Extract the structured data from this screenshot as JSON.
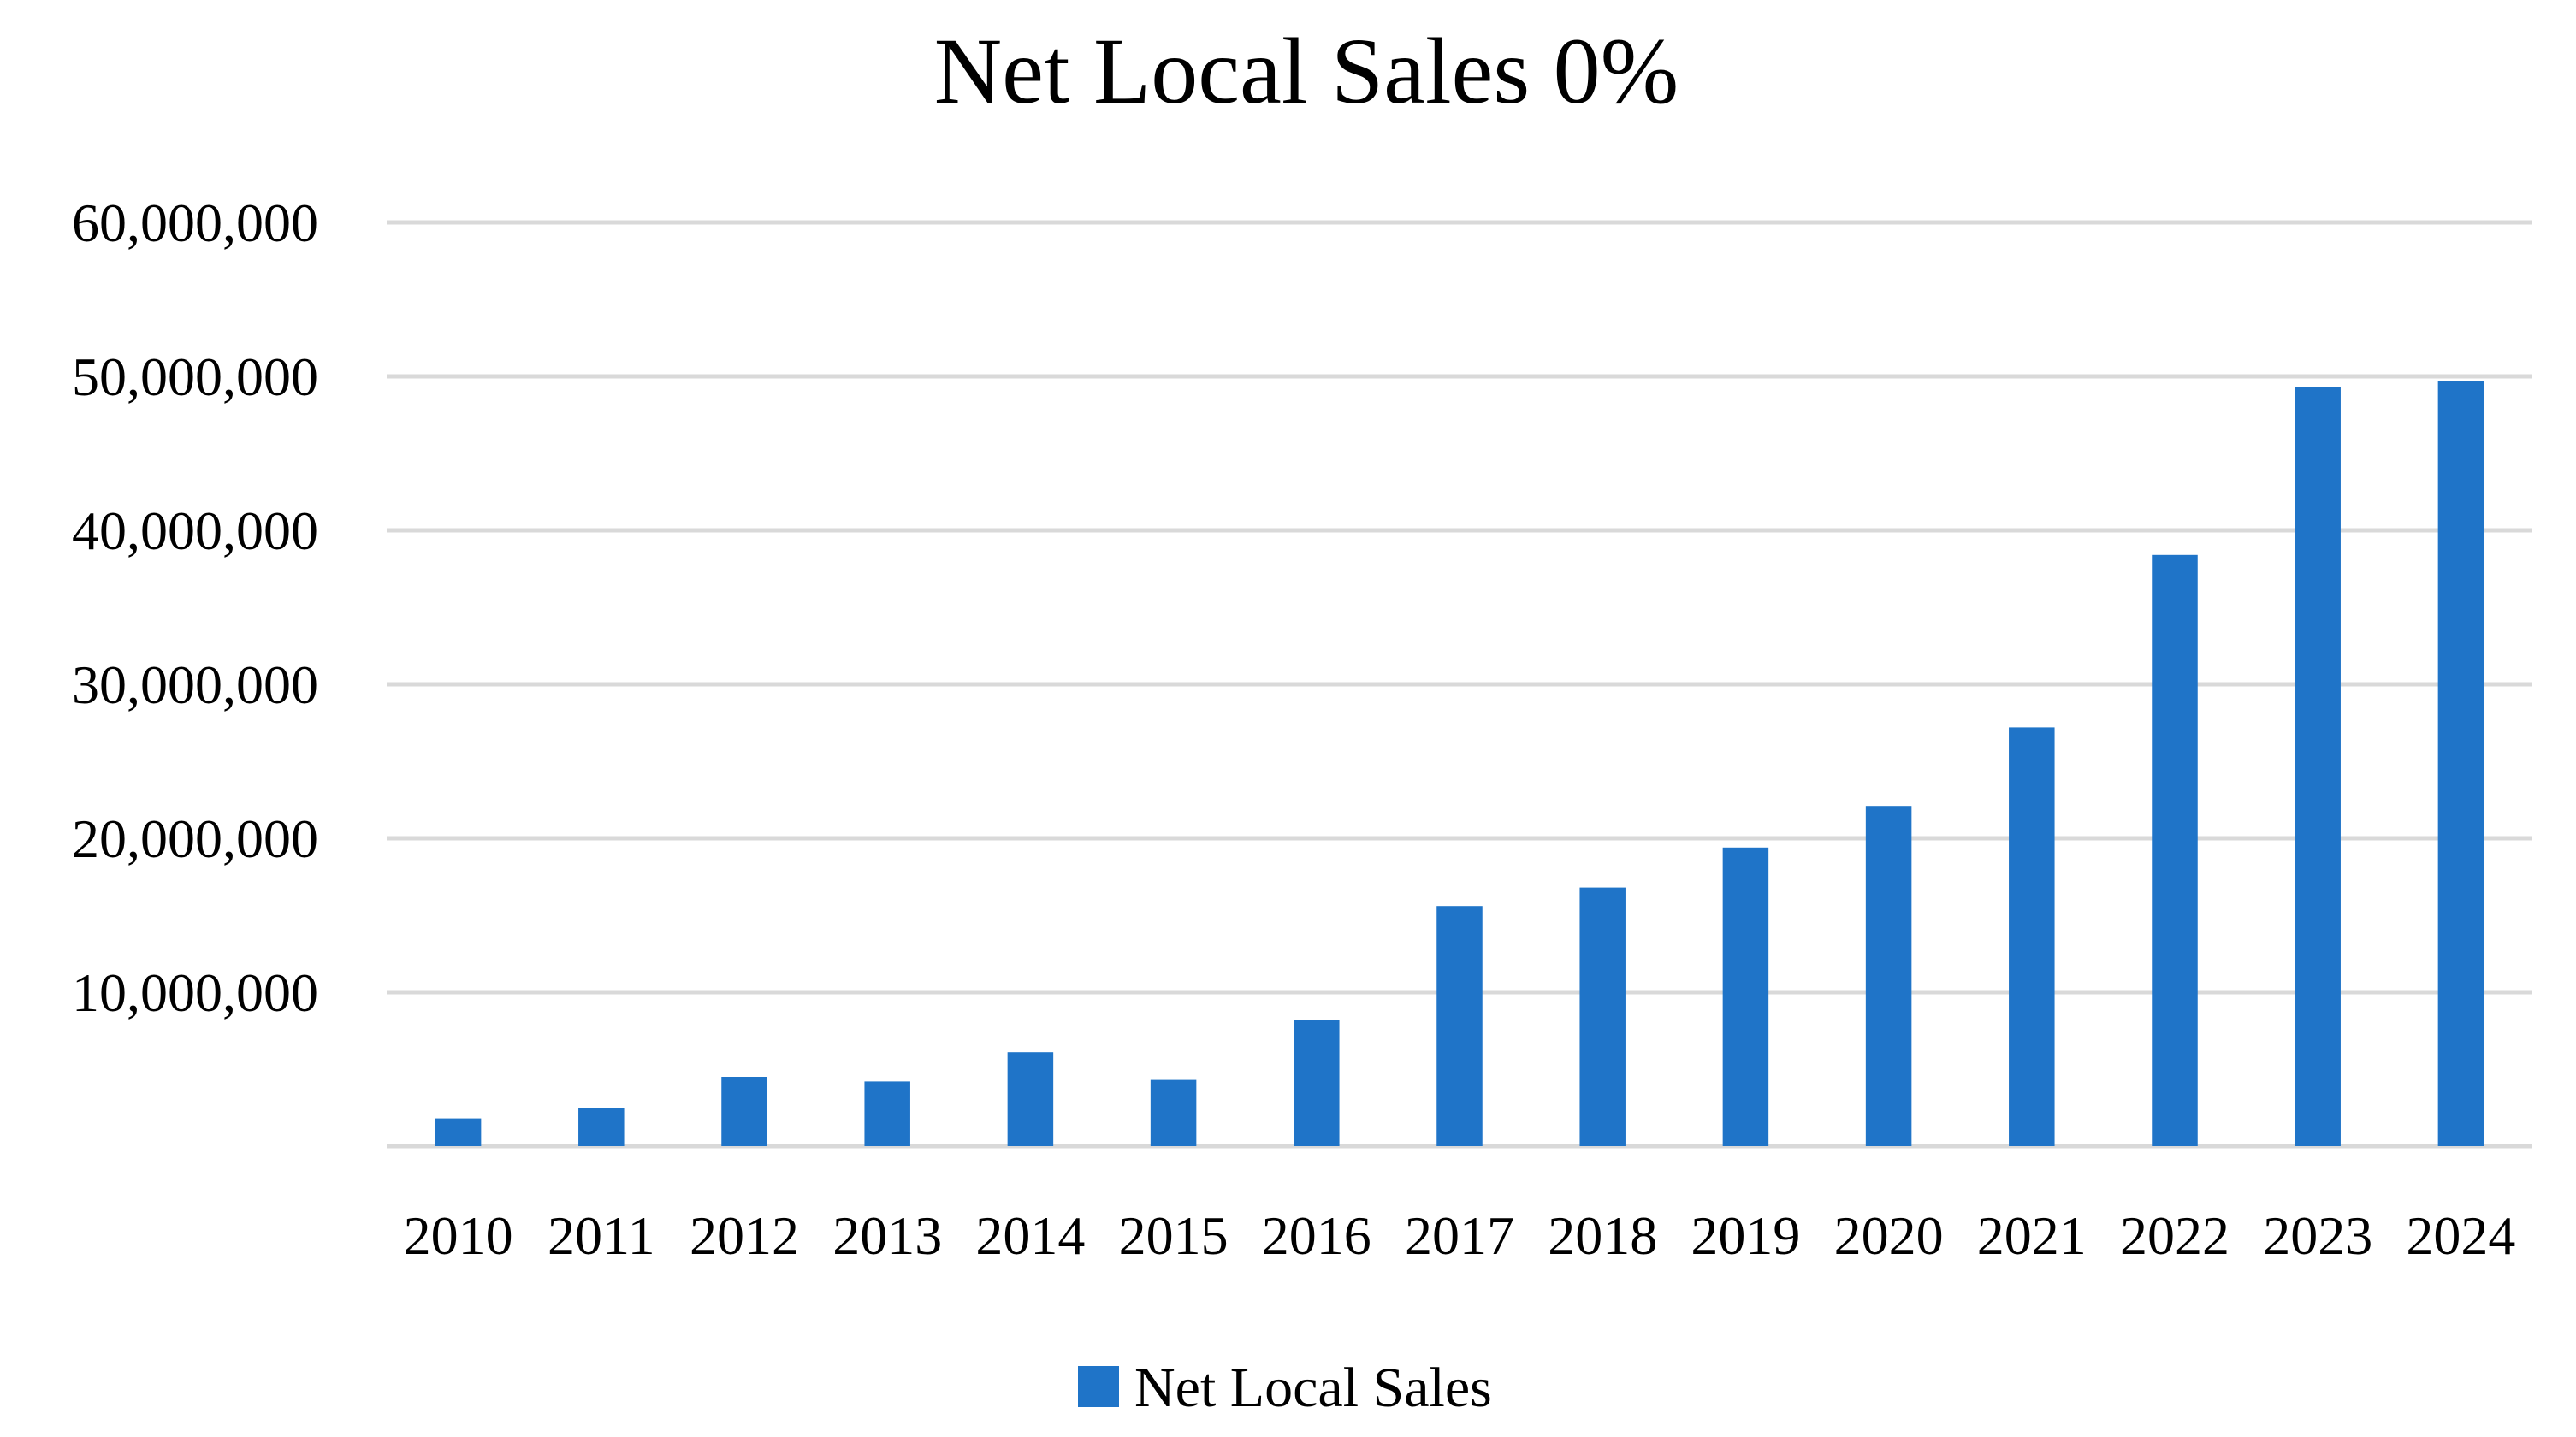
{
  "chart_data": {
    "type": "bar",
    "title": "Net Local Sales 0%",
    "xlabel": "",
    "ylabel": "",
    "categories": [
      "2010",
      "2011",
      "2012",
      "2013",
      "2014",
      "2015",
      "2016",
      "2017",
      "2018",
      "2019",
      "2020",
      "2021",
      "2022",
      "2023",
      "2024"
    ],
    "series": [
      {
        "name": "Net Local Sales",
        "color": "#1f74c8",
        "values": [
          1800000,
          2500000,
          4500000,
          4200000,
          6100000,
          4300000,
          8200000,
          15600000,
          16800000,
          19400000,
          22100000,
          27200000,
          38400000,
          49300000,
          49700000
        ]
      }
    ],
    "ylim": [
      0,
      60000000
    ],
    "yticks": [
      0,
      10000000,
      20000000,
      30000000,
      40000000,
      50000000,
      60000000
    ],
    "ytick_labels": [
      "",
      "10,000,000",
      "20,000,000",
      "30,000,000",
      "40,000,000",
      "50,000,000",
      "60,000,000"
    ],
    "grid": true,
    "legend_position": "bottom"
  }
}
